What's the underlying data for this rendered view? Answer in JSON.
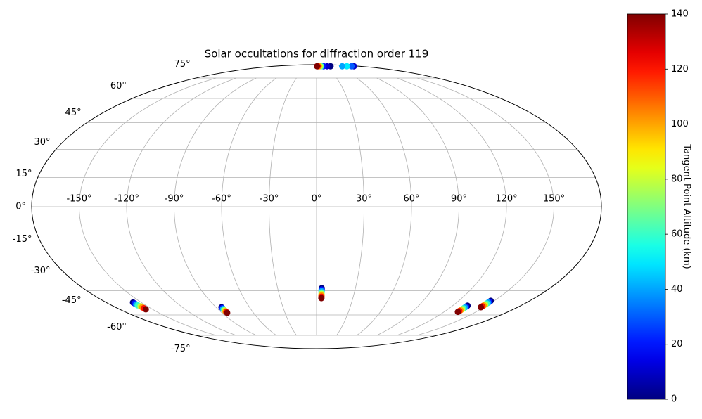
{
  "chart_data": {
    "type": "mollweide-scatter",
    "title": "Solar occultations for diffraction order 119",
    "colorbar_label": "Tangent Point Altitude (km)",
    "colormap": "jet",
    "clim": [
      0,
      140
    ],
    "cticks": [
      0,
      20,
      40,
      60,
      80,
      100,
      120,
      140
    ],
    "xticks": [
      {
        "value": -150,
        "label": "-150°"
      },
      {
        "value": -120,
        "label": "-120°"
      },
      {
        "value": -90,
        "label": "-90°"
      },
      {
        "value": -60,
        "label": "-60°"
      },
      {
        "value": -30,
        "label": "-30°"
      },
      {
        "value": 0,
        "label": "0°"
      },
      {
        "value": 30,
        "label": "30°"
      },
      {
        "value": 60,
        "label": "60°"
      },
      {
        "value": 90,
        "label": "90°"
      },
      {
        "value": 120,
        "label": "120°"
      },
      {
        "value": 150,
        "label": "150°"
      }
    ],
    "yticks": [
      {
        "value": -75,
        "label": "-75°"
      },
      {
        "value": -60,
        "label": "-60°"
      },
      {
        "value": -45,
        "label": "-45°"
      },
      {
        "value": -30,
        "label": "-30°"
      },
      {
        "value": -15,
        "label": "-15°"
      },
      {
        "value": 0,
        "label": "0°"
      },
      {
        "value": 15,
        "label": "15°"
      },
      {
        "value": 30,
        "label": "30°"
      },
      {
        "value": 45,
        "label": "45°"
      },
      {
        "value": 60,
        "label": "60°"
      },
      {
        "value": 75,
        "label": "75°"
      }
    ],
    "grid": true,
    "lon": [
      60,
      45,
      30,
      20,
      15,
      10,
      5,
      2,
      160,
      150,
      130,
      110,
      4,
      4,
      4,
      4,
      4,
      4,
      4,
      4,
      -157,
      -157,
      -157,
      -157,
      -156,
      -156,
      -156,
      -156,
      -85,
      -85,
      -85,
      -85,
      -85,
      -85,
      -85,
      -85,
      133,
      133,
      133,
      133,
      133,
      133,
      133,
      133,
      147,
      147,
      147,
      147,
      147,
      147,
      147,
      147
    ],
    "lat": [
      87,
      87,
      87,
      87,
      87,
      87,
      87,
      87,
      87,
      87,
      87,
      87,
      -43.5,
      -44.3,
      -45.2,
      -46,
      -46.8,
      -47.7,
      -48.5,
      -49.4,
      -52,
      -52.6,
      -53.2,
      -53.8,
      -54.4,
      -55,
      -55.6,
      -56.3,
      -55,
      -55.5,
      -56,
      -56.5,
      -57,
      -57.6,
      -58.1,
      -58.6,
      -54,
      -54.6,
      -55.1,
      -55.7,
      -56.3,
      -56.9,
      -57.4,
      -58,
      -51,
      -51.6,
      -52.1,
      -52.7,
      -53.3,
      -53.9,
      -54.4,
      -55
    ],
    "altitude": [
      0,
      10,
      20,
      60,
      80,
      100,
      120,
      140,
      10,
      30,
      50,
      40,
      0,
      20,
      40,
      60,
      80,
      100,
      120,
      140,
      0,
      20,
      40,
      60,
      80,
      100,
      120,
      140,
      0,
      20,
      40,
      60,
      80,
      100,
      120,
      140,
      0,
      20,
      40,
      60,
      80,
      100,
      120,
      140,
      0,
      20,
      40,
      60,
      80,
      100,
      120,
      140
    ]
  }
}
